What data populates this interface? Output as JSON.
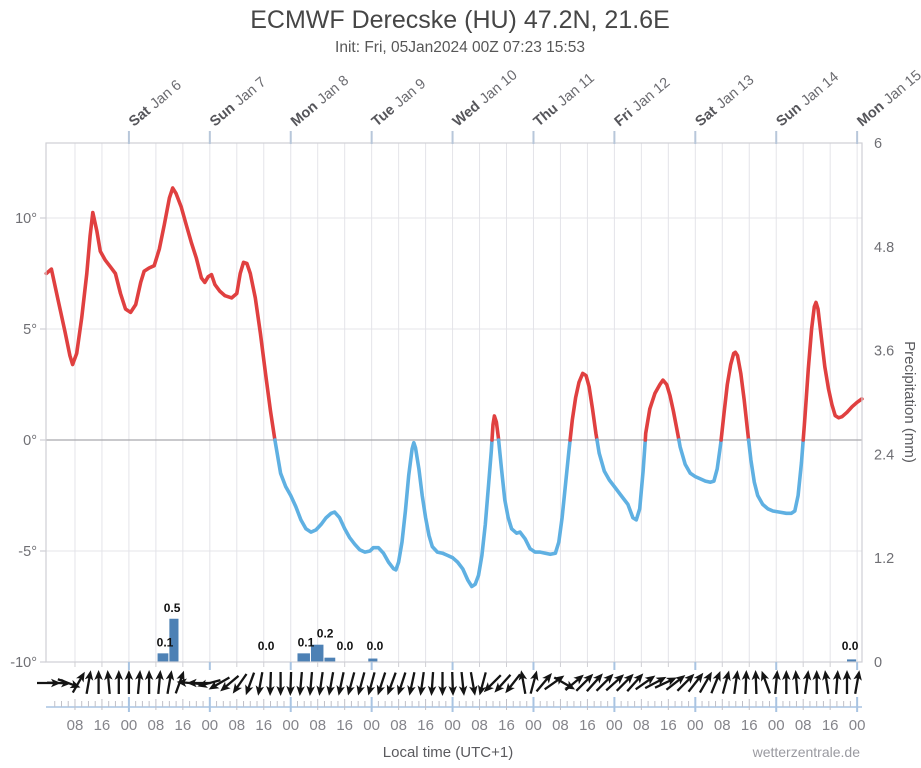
{
  "header": {
    "title": "ECMWF Derecske (HU) 47.2N, 21.6E",
    "subtitle": "Init: Fri, 05Jan2024 00Z 07:23 15:53"
  },
  "axes": {
    "left_ticks": [
      {
        "label": "10°",
        "value": 10
      },
      {
        "label": "5°",
        "value": 5
      },
      {
        "label": "0°",
        "value": 0
      },
      {
        "label": "-5°",
        "value": -5
      },
      {
        "label": "-10°",
        "value": -10
      }
    ],
    "right_ticks": [
      {
        "label": "6",
        "value": 6
      },
      {
        "label": "4.8",
        "value": 4.8
      },
      {
        "label": "3.6",
        "value": 3.6
      },
      {
        "label": "2.4",
        "value": 2.4
      },
      {
        "label": "1.2",
        "value": 1.2
      },
      {
        "label": "0",
        "value": 0
      }
    ],
    "right_title": "Precipitation (mm)",
    "bottom_title": "Local time (UTC+1)",
    "day_labels": [
      {
        "day": "Sat",
        "date": "Jan 6"
      },
      {
        "day": "Sun",
        "date": "Jan 7"
      },
      {
        "day": "Mon",
        "date": "Jan 8"
      },
      {
        "day": "Tue",
        "date": "Jan 9"
      },
      {
        "day": "Wed",
        "date": "Jan 10"
      },
      {
        "day": "Thu",
        "date": "Jan 11"
      },
      {
        "day": "Fri",
        "date": "Jan 12"
      },
      {
        "day": "Sat",
        "date": "Jan 13"
      },
      {
        "day": "Sun",
        "date": "Jan 14"
      },
      {
        "day": "Mon",
        "date": "Jan 15"
      }
    ],
    "bottom_labels": [
      "08",
      "16",
      "00",
      "08",
      "16",
      "00",
      "08",
      "16",
      "00",
      "08",
      "16",
      "00",
      "08",
      "16",
      "00",
      "08",
      "16",
      "00",
      "08",
      "16",
      "00",
      "08",
      "16",
      "00",
      "08",
      "16",
      "00",
      "08",
      "16",
      "00"
    ]
  },
  "footer": {
    "watermark": "wetterzentrale.de"
  },
  "colors": {
    "temp_above": "#e04040",
    "temp_below": "#5fb0e2",
    "precip_bar": "#4d81b5",
    "grid": "#e4e4e9",
    "zero_line": "#a9a9ad",
    "border": "#cfcfd4",
    "day_tick": "#b8c7da",
    "comb_tick": "#c0c0c8",
    "comb_day": "#a9c4e2",
    "arrow": "#141414"
  },
  "chart_data": {
    "type": "meteogram",
    "title": "ECMWF Derecske (HU) 47.2N, 21.6E",
    "subtitle": "Init: Fri, 05Jan2024 00Z 07:23 15:53",
    "time_axis": {
      "note": "hours since Fri 05Jan2024 00:00 local (UTC+1)",
      "range_hours": [
        -0.6,
        241.4
      ],
      "day_starts_hours": [
        24,
        48,
        72,
        96,
        120,
        144,
        168,
        192,
        216,
        240
      ]
    },
    "temperature": {
      "unit": "degC",
      "axis_ticks": [
        10,
        5,
        0,
        -5,
        -10
      ],
      "color_above_zero": "red",
      "color_below_zero": "blue",
      "series": [
        [
          -0.5,
          7.5
        ],
        [
          1,
          7.7
        ],
        [
          3,
          6.3
        ],
        [
          5,
          4.9
        ],
        [
          6.5,
          3.8
        ],
        [
          7.3,
          3.4
        ],
        [
          8.5,
          3.9
        ],
        [
          10,
          5.5
        ],
        [
          11.5,
          7.5
        ],
        [
          12.5,
          9.2
        ],
        [
          13.3,
          10.25
        ],
        [
          14.5,
          9.4
        ],
        [
          15.5,
          8.5
        ],
        [
          17,
          8.1
        ],
        [
          18.5,
          7.8
        ],
        [
          20,
          7.5
        ],
        [
          21.5,
          6.6
        ],
        [
          23,
          5.9
        ],
        [
          24.5,
          5.75
        ],
        [
          26,
          6.1
        ],
        [
          27.5,
          7.1
        ],
        [
          28.5,
          7.6
        ],
        [
          30,
          7.75
        ],
        [
          31.5,
          7.85
        ],
        [
          33,
          8.6
        ],
        [
          34.5,
          9.7
        ],
        [
          36,
          10.9
        ],
        [
          37,
          11.35
        ],
        [
          38,
          11.1
        ],
        [
          39.5,
          10.5
        ],
        [
          41,
          9.7
        ],
        [
          42.5,
          8.9
        ],
        [
          44,
          8.2
        ],
        [
          45.5,
          7.3
        ],
        [
          46.5,
          7.1
        ],
        [
          47.5,
          7.35
        ],
        [
          48.5,
          7.45
        ],
        [
          49.5,
          7.0
        ],
        [
          51,
          6.7
        ],
        [
          52.5,
          6.5
        ],
        [
          54.5,
          6.4
        ],
        [
          56,
          6.6
        ],
        [
          57,
          7.5
        ],
        [
          58,
          8.0
        ],
        [
          59,
          7.95
        ],
        [
          60,
          7.5
        ],
        [
          61.5,
          6.4
        ],
        [
          63,
          4.8
        ],
        [
          64.5,
          3.0
        ],
        [
          66,
          1.3
        ],
        [
          67.3,
          0.0
        ],
        [
          69,
          -1.5
        ],
        [
          70.5,
          -2.1
        ],
        [
          72,
          -2.5
        ],
        [
          73.5,
          -3.0
        ],
        [
          75,
          -3.6
        ],
        [
          76.5,
          -4.0
        ],
        [
          78,
          -4.15
        ],
        [
          79.5,
          -4.05
        ],
        [
          81,
          -3.8
        ],
        [
          82.5,
          -3.5
        ],
        [
          84,
          -3.3
        ],
        [
          85,
          -3.25
        ],
        [
          86.5,
          -3.5
        ],
        [
          88,
          -4.0
        ],
        [
          89.5,
          -4.4
        ],
        [
          91,
          -4.7
        ],
        [
          92.5,
          -4.95
        ],
        [
          94,
          -5.05
        ],
        [
          95.5,
          -5.0
        ],
        [
          96.5,
          -4.85
        ],
        [
          98,
          -4.85
        ],
        [
          99.5,
          -5.1
        ],
        [
          101,
          -5.5
        ],
        [
          102.5,
          -5.8
        ],
        [
          103.2,
          -5.85
        ],
        [
          104,
          -5.5
        ],
        [
          105,
          -4.6
        ],
        [
          106,
          -3.2
        ],
        [
          107,
          -1.6
        ],
        [
          108,
          -0.4
        ],
        [
          108.5,
          -0.12
        ],
        [
          109,
          -0.35
        ],
        [
          110,
          -1.3
        ],
        [
          111,
          -2.5
        ],
        [
          112,
          -3.5
        ],
        [
          113,
          -4.3
        ],
        [
          114,
          -4.8
        ],
        [
          115.5,
          -5.05
        ],
        [
          117,
          -5.1
        ],
        [
          118.5,
          -5.2
        ],
        [
          120,
          -5.3
        ],
        [
          121.5,
          -5.5
        ],
        [
          123,
          -5.8
        ],
        [
          124.5,
          -6.3
        ],
        [
          125.7,
          -6.6
        ],
        [
          126.7,
          -6.5
        ],
        [
          127.7,
          -6.1
        ],
        [
          128.7,
          -5.2
        ],
        [
          129.7,
          -3.8
        ],
        [
          130.7,
          -2.0
        ],
        [
          131.5,
          -0.5
        ],
        [
          132,
          0.7
        ],
        [
          132.4,
          1.08
        ],
        [
          133,
          0.8
        ],
        [
          133.6,
          0.1
        ],
        [
          134.5,
          -1.3
        ],
        [
          135.5,
          -2.7
        ],
        [
          136.5,
          -3.5
        ],
        [
          137.5,
          -4.0
        ],
        [
          139,
          -4.2
        ],
        [
          140,
          -4.15
        ],
        [
          141.5,
          -4.45
        ],
        [
          143,
          -4.9
        ],
        [
          144.5,
          -5.05
        ],
        [
          146,
          -5.05
        ],
        [
          147.5,
          -5.1
        ],
        [
          149,
          -5.15
        ],
        [
          150.5,
          -5.1
        ],
        [
          151.5,
          -4.6
        ],
        [
          152.5,
          -3.5
        ],
        [
          153.5,
          -2.0
        ],
        [
          154.5,
          -0.5
        ],
        [
          155.5,
          0.9
        ],
        [
          156.5,
          1.9
        ],
        [
          157.5,
          2.6
        ],
        [
          158.6,
          3.0
        ],
        [
          159.6,
          2.9
        ],
        [
          160.5,
          2.4
        ],
        [
          161.5,
          1.4
        ],
        [
          162.5,
          0.3
        ],
        [
          163.5,
          -0.6
        ],
        [
          165,
          -1.4
        ],
        [
          166.5,
          -1.8
        ],
        [
          168,
          -2.1
        ],
        [
          170,
          -2.5
        ],
        [
          172,
          -2.9
        ],
        [
          173.5,
          -3.5
        ],
        [
          174.5,
          -3.6
        ],
        [
          175.5,
          -3.1
        ],
        [
          176.5,
          -1.4
        ],
        [
          177.3,
          0.3
        ],
        [
          178.5,
          1.4
        ],
        [
          180,
          2.1
        ],
        [
          181.5,
          2.5
        ],
        [
          182.4,
          2.7
        ],
        [
          183.5,
          2.5
        ],
        [
          184.5,
          2.0
        ],
        [
          185.5,
          1.3
        ],
        [
          186.5,
          0.5
        ],
        [
          187.5,
          -0.3
        ],
        [
          189,
          -1.1
        ],
        [
          190.5,
          -1.5
        ],
        [
          192,
          -1.65
        ],
        [
          193.5,
          -1.75
        ],
        [
          195,
          -1.85
        ],
        [
          196.5,
          -1.9
        ],
        [
          197.5,
          -1.85
        ],
        [
          198.5,
          -1.3
        ],
        [
          199.5,
          -0.2
        ],
        [
          200.5,
          1.2
        ],
        [
          201.5,
          2.5
        ],
        [
          202.5,
          3.4
        ],
        [
          203.4,
          3.9
        ],
        [
          203.9,
          3.95
        ],
        [
          204.5,
          3.8
        ],
        [
          205.5,
          3.0
        ],
        [
          206.5,
          1.8
        ],
        [
          207.5,
          0.4
        ],
        [
          208.5,
          -0.9
        ],
        [
          209.5,
          -1.9
        ],
        [
          210.5,
          -2.5
        ],
        [
          212,
          -2.9
        ],
        [
          213.5,
          -3.1
        ],
        [
          215,
          -3.2
        ],
        [
          217,
          -3.25
        ],
        [
          219,
          -3.3
        ],
        [
          220.5,
          -3.3
        ],
        [
          221.5,
          -3.2
        ],
        [
          222.5,
          -2.5
        ],
        [
          223.5,
          -1.0
        ],
        [
          224.5,
          1.0
        ],
        [
          225.5,
          3.2
        ],
        [
          226.5,
          5.0
        ],
        [
          227.3,
          6.0
        ],
        [
          227.8,
          6.2
        ],
        [
          228.4,
          5.9
        ],
        [
          229.4,
          4.6
        ],
        [
          230.4,
          3.3
        ],
        [
          231.5,
          2.3
        ],
        [
          232.5,
          1.6
        ],
        [
          233.5,
          1.1
        ],
        [
          234.5,
          1.0
        ],
        [
          235.5,
          1.05
        ],
        [
          237,
          1.25
        ],
        [
          238.5,
          1.5
        ],
        [
          240,
          1.7
        ],
        [
          241.4,
          1.85
        ]
      ]
    },
    "precipitation": {
      "unit": "mm",
      "axis_ticks": [
        6,
        4.8,
        3.6,
        2.4,
        1.2,
        0
      ],
      "bars": [
        {
          "t0": 32.5,
          "t1": 36,
          "mm": 0.1
        },
        {
          "t0": 36,
          "t1": 39,
          "mm": 0.5
        },
        {
          "t0": 74,
          "t1": 78,
          "mm": 0.1
        },
        {
          "t0": 78,
          "t1": 82,
          "mm": 0.2
        },
        {
          "t0": 82,
          "t1": 85.5,
          "mm": 0.05
        },
        {
          "t0": 95,
          "t1": 98,
          "mm": 0.04
        },
        {
          "t0": 237,
          "t1": 240,
          "mm": 0.03
        }
      ],
      "labels": [
        {
          "t": 34.7,
          "text": "0.1",
          "above_mm": 0.1
        },
        {
          "t": 36.8,
          "text": "0.5",
          "above_mm": 0.5
        },
        {
          "t": 64.7,
          "text": "0.0",
          "above_mm": 0
        },
        {
          "t": 76.5,
          "text": "0.1",
          "above_mm": 0.1
        },
        {
          "t": 82.2,
          "text": "0.2",
          "above_mm": 0.2
        },
        {
          "t": 88.1,
          "text": "0.0",
          "above_mm": 0
        },
        {
          "t": 97,
          "text": "0.0",
          "above_mm": 0
        },
        {
          "t": 237.9,
          "text": "0.0",
          "above_mm": 0
        }
      ]
    },
    "wind": {
      "note": "arrow direction in degrees clockwise, 0 = pointing up (north)",
      "start_hour": 0,
      "interval_hours": 3,
      "dirs_deg": [
        90,
        92,
        110,
        30,
        10,
        0,
        355,
        0,
        0,
        5,
        0,
        5,
        10,
        20,
        275,
        270,
        255,
        240,
        230,
        215,
        200,
        190,
        182,
        180,
        182,
        185,
        185,
        188,
        190,
        192,
        195,
        195,
        195,
        198,
        200,
        198,
        192,
        188,
        184,
        180,
        178,
        174,
        170,
        195,
        225,
        222,
        218,
        350,
        15,
        40,
        55,
        120,
        50,
        45,
        42,
        45,
        48,
        45,
        42,
        55,
        62,
        65,
        52,
        45,
        38,
        30,
        22,
        15,
        8,
        2,
        358,
        340,
        5,
        0,
        356,
        8,
        0,
        352,
        4,
        0,
        10
      ]
    }
  }
}
